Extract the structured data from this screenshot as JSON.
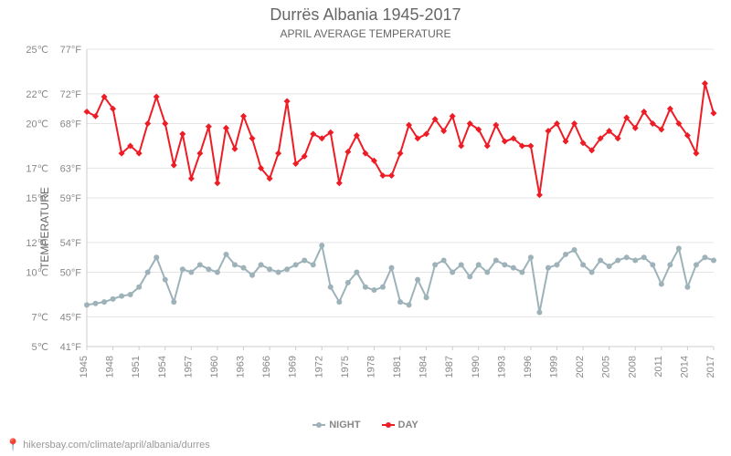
{
  "title": "Durrës Albania 1945-2017",
  "subtitle": "April Average Temperature",
  "ylabel": "Temperature",
  "attribution": "hikersbay.com/climate/april/albania/durres",
  "chart": {
    "type": "line",
    "background_color": "#ffffff",
    "grid_color": "#e5e5e5",
    "axis_color": "#cccccc",
    "tick_label_color": "#888888",
    "tick_fontsize": 11,
    "title_color": "#666666",
    "title_fontsize": 18,
    "subtitle_fontsize": 12,
    "ylabel_fontsize": 12,
    "line_width": 2,
    "marker_size": 3,
    "yaxis": {
      "min_c": 5,
      "max_c": 25,
      "ticks_c": [
        5,
        7,
        10,
        12,
        15,
        17,
        20,
        22,
        25
      ],
      "ticks_c_labels": [
        "5℃",
        "7℃",
        "10℃",
        "12℃",
        "15℃",
        "17℃",
        "20℃",
        "22℃",
        "25℃"
      ],
      "ticks_f_labels": [
        "41°F",
        "45°F",
        "50°F",
        "54°F",
        "59°F",
        "63°F",
        "68°F",
        "72°F",
        "77°F"
      ]
    },
    "xaxis": {
      "min": 1945,
      "max": 2017,
      "tick_step": 3,
      "ticks": [
        1945,
        1948,
        1951,
        1954,
        1957,
        1960,
        1963,
        1966,
        1969,
        1972,
        1975,
        1978,
        1981,
        1984,
        1987,
        1990,
        1993,
        1996,
        1999,
        2002,
        2005,
        2008,
        2011,
        2014,
        2017
      ]
    },
    "years": [
      1945,
      1946,
      1947,
      1948,
      1949,
      1950,
      1951,
      1952,
      1953,
      1954,
      1955,
      1956,
      1957,
      1958,
      1959,
      1960,
      1961,
      1962,
      1963,
      1964,
      1965,
      1966,
      1967,
      1968,
      1969,
      1970,
      1971,
      1972,
      1973,
      1974,
      1975,
      1976,
      1977,
      1978,
      1979,
      1980,
      1981,
      1982,
      1983,
      1984,
      1985,
      1986,
      1987,
      1988,
      1989,
      1990,
      1991,
      1992,
      1993,
      1994,
      1995,
      1996,
      1997,
      1998,
      1999,
      2000,
      2001,
      2002,
      2003,
      2004,
      2005,
      2006,
      2007,
      2008,
      2009,
      2010,
      2011,
      2012,
      2013,
      2014,
      2015,
      2016,
      2017
    ],
    "series": {
      "night": {
        "label": "NIGHT",
        "color": "#9db2b9",
        "marker": "circle",
        "data_c": [
          7.8,
          7.9,
          8.0,
          8.2,
          8.4,
          8.5,
          9.0,
          10.0,
          11.0,
          9.5,
          8.0,
          10.2,
          10.0,
          10.5,
          10.2,
          10.0,
          11.2,
          10.5,
          10.3,
          9.8,
          10.5,
          10.2,
          10.0,
          10.2,
          10.5,
          10.8,
          10.5,
          11.8,
          9.0,
          8.0,
          9.3,
          10.0,
          9.0,
          8.8,
          9.0,
          10.3,
          8.0,
          7.8,
          9.5,
          8.3,
          10.5,
          10.8,
          10.0,
          10.5,
          9.7,
          10.5,
          10.0,
          10.8,
          10.5,
          10.3,
          10.0,
          11.0,
          7.3,
          10.3,
          10.5,
          11.2,
          11.5,
          10.5,
          10.0,
          10.8,
          10.4,
          10.8,
          11.0,
          10.8,
          11.0,
          10.5,
          9.2,
          10.5,
          11.6,
          9.0,
          10.5,
          11.0,
          10.8
        ]
      },
      "day": {
        "label": "DAY",
        "color": "#ee1c25",
        "marker": "diamond",
        "data_c": [
          20.8,
          20.5,
          21.8,
          21.0,
          18.0,
          18.5,
          18.0,
          20.0,
          21.8,
          20.0,
          17.2,
          19.3,
          16.3,
          18.0,
          19.8,
          16.0,
          19.7,
          18.3,
          20.5,
          19.0,
          17.0,
          16.3,
          18.0,
          21.5,
          17.3,
          17.8,
          19.3,
          19.0,
          19.4,
          16.0,
          18.1,
          19.2,
          18.0,
          17.5,
          16.5,
          16.5,
          18.0,
          19.9,
          19.0,
          19.3,
          20.3,
          19.5,
          20.5,
          18.5,
          20.0,
          19.6,
          18.5,
          19.9,
          18.8,
          19.0,
          18.5,
          18.5,
          15.2,
          19.5,
          20.0,
          18.8,
          20.0,
          18.7,
          18.2,
          19.0,
          19.5,
          19.0,
          20.4,
          19.7,
          20.8,
          20.0,
          19.6,
          21.0,
          20.0,
          19.2,
          18.0,
          22.7,
          20.7
        ]
      }
    }
  },
  "legend": {
    "night": "NIGHT",
    "day": "DAY"
  }
}
